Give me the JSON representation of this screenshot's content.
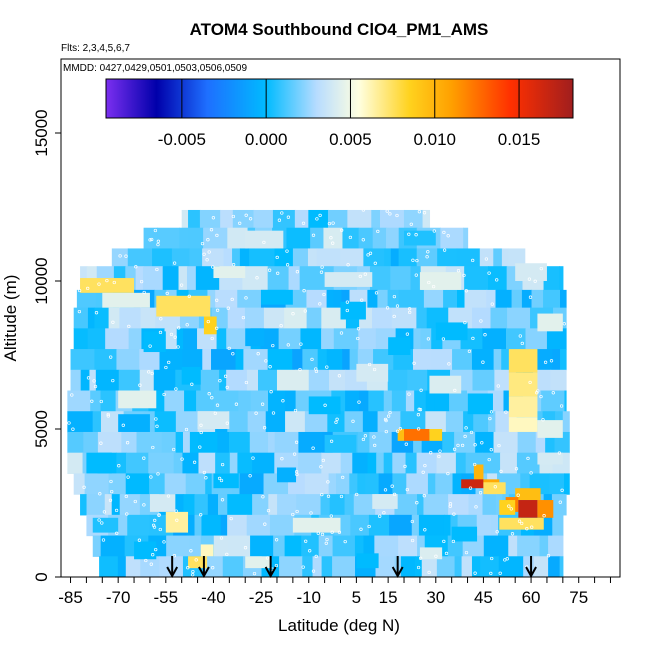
{
  "chart_data": {
    "type": "heatmap",
    "title": "ATOM4 Southbound ClO4_PM1_AMS",
    "flights_note": "Flts: 2,3,4,5,6,7",
    "dates_note": "MMDD: 0427,0429,0501,0503,0506,0509",
    "xlabel": "Latitude (deg N)",
    "ylabel": "Altitude (m)",
    "xlim": [
      -88,
      88
    ],
    "ylim": [
      0,
      17500
    ],
    "x_ticks": [
      -85,
      -70,
      -55,
      -40,
      -25,
      -10,
      5,
      15,
      30,
      45,
      60,
      75
    ],
    "x_tick_labels": [
      "-85",
      "-70",
      "-55",
      "-40",
      "-25",
      "-10",
      "5",
      "15",
      "30",
      "45",
      "60",
      "75"
    ],
    "x_minor_step": 5,
    "y_ticks": [
      0,
      5000,
      10000,
      15000
    ],
    "y_tick_labels": [
      "0",
      "5000",
      "10000",
      "15000"
    ],
    "colorbar": {
      "min": -0.0095,
      "max": 0.0182,
      "ticks": [
        -0.005,
        0.0,
        0.005,
        0.01,
        0.015
      ],
      "tick_labels": [
        "-0.005",
        "0.000",
        "0.005",
        "0.010",
        "0.015"
      ],
      "stops": [
        {
          "v": -0.0095,
          "c": "#7b2ff0"
        },
        {
          "v": -0.0065,
          "c": "#0000aa"
        },
        {
          "v": -0.0035,
          "c": "#1e6fff"
        },
        {
          "v": 0.0,
          "c": "#00bbff"
        },
        {
          "v": 0.003,
          "c": "#b7dcff"
        },
        {
          "v": 0.0055,
          "c": "#ffffe0"
        },
        {
          "v": 0.0085,
          "c": "#ffd21e"
        },
        {
          "v": 0.011,
          "c": "#ffa000"
        },
        {
          "v": 0.0145,
          "c": "#ff3000"
        },
        {
          "v": 0.0182,
          "c": "#a01e1e"
        }
      ]
    },
    "background_value": 0.0015,
    "bands": [
      {
        "alt": [
          11800,
          12400
        ],
        "lat": [
          -50,
          28
        ],
        "v": 0.002
      },
      {
        "alt": [
          11100,
          11800
        ],
        "lat": [
          -62,
          40
        ],
        "v": 0.0022
      },
      {
        "alt": [
          10500,
          11100
        ],
        "lat": [
          -72,
          58
        ],
        "v": 0.0016
      },
      {
        "alt": [
          9700,
          10500
        ],
        "lat": [
          -82,
          70
        ],
        "v": 0.0018
      },
      {
        "alt": [
          9100,
          9700
        ],
        "lat": [
          -83,
          71
        ],
        "v": 0.0012
      },
      {
        "alt": [
          8400,
          9100
        ],
        "lat": [
          -84,
          71
        ],
        "v": 0.002
      },
      {
        "alt": [
          7700,
          8400
        ],
        "lat": [
          -84,
          71
        ],
        "v": 0.0015
      },
      {
        "alt": [
          7000,
          7700
        ],
        "lat": [
          -85,
          71
        ],
        "v": 0.001
      },
      {
        "alt": [
          6300,
          7000
        ],
        "lat": [
          -85,
          71
        ],
        "v": 0.0018
      },
      {
        "alt": [
          5600,
          6300
        ],
        "lat": [
          -86,
          71
        ],
        "v": 0.0012
      },
      {
        "alt": [
          4900,
          5600
        ],
        "lat": [
          -86,
          72
        ],
        "v": 0.0016
      },
      {
        "alt": [
          4200,
          4900
        ],
        "lat": [
          -86,
          72
        ],
        "v": 0.0012
      },
      {
        "alt": [
          3500,
          4200
        ],
        "lat": [
          -86,
          72
        ],
        "v": 0.0018
      },
      {
        "alt": [
          2800,
          3500
        ],
        "lat": [
          -84,
          72
        ],
        "v": 0.0014
      },
      {
        "alt": [
          2100,
          2800
        ],
        "lat": [
          -82,
          71
        ],
        "v": 0.0016
      },
      {
        "alt": [
          1400,
          2100
        ],
        "lat": [
          -80,
          70
        ],
        "v": 0.0012
      },
      {
        "alt": [
          700,
          1400
        ],
        "lat": [
          -78,
          70
        ],
        "v": 0.0017
      },
      {
        "alt": [
          0,
          700
        ],
        "lat": [
          -76,
          70
        ],
        "v": 0.0013
      }
    ],
    "patches": [
      {
        "lat": [
          -82,
          -65
        ],
        "alt": [
          9600,
          10100
        ],
        "v": 0.0075
      },
      {
        "lat": [
          -58,
          -41
        ],
        "alt": [
          8800,
          9500
        ],
        "v": 0.0075
      },
      {
        "lat": [
          -43,
          -39
        ],
        "alt": [
          8200,
          8800
        ],
        "v": 0.0085
      },
      {
        "lat": [
          -75,
          -60
        ],
        "alt": [
          9100,
          9600
        ],
        "v": 0.0045
      },
      {
        "lat": [
          -40,
          -30
        ],
        "alt": [
          10100,
          10500
        ],
        "v": 0.0045
      },
      {
        "lat": [
          -30,
          -18
        ],
        "alt": [
          11100,
          11700
        ],
        "v": 0.004
      },
      {
        "lat": [
          -5,
          10
        ],
        "alt": [
          9800,
          10300
        ],
        "v": 0.004
      },
      {
        "lat": [
          25,
          38
        ],
        "alt": [
          9700,
          10300
        ],
        "v": 0.0045
      },
      {
        "lat": [
          55,
          65
        ],
        "alt": [
          10000,
          10600
        ],
        "v": 0.004
      },
      {
        "lat": [
          62,
          70
        ],
        "alt": [
          8300,
          8900
        ],
        "v": 0.0045
      },
      {
        "lat": [
          -70,
          -58
        ],
        "alt": [
          5700,
          6300
        ],
        "v": 0.0045
      },
      {
        "lat": [
          -20,
          -10
        ],
        "alt": [
          6300,
          7000
        ],
        "v": 0.0042
      },
      {
        "lat": [
          -45,
          -35
        ],
        "alt": [
          5000,
          5600
        ],
        "v": 0.004
      },
      {
        "lat": [
          5,
          15
        ],
        "alt": [
          6600,
          7200
        ],
        "v": 0.004
      },
      {
        "lat": [
          28,
          38
        ],
        "alt": [
          6200,
          6800
        ],
        "v": 0.0042
      },
      {
        "lat": [
          53,
          62
        ],
        "alt": [
          6900,
          7700
        ],
        "v": 0.0075
      },
      {
        "lat": [
          53,
          62
        ],
        "alt": [
          6100,
          6900
        ],
        "v": 0.007
      },
      {
        "lat": [
          53,
          62
        ],
        "alt": [
          5400,
          6100
        ],
        "v": 0.0065
      },
      {
        "lat": [
          53,
          62
        ],
        "alt": [
          4900,
          5400
        ],
        "v": 0.006
      },
      {
        "lat": [
          62,
          70
        ],
        "alt": [
          4700,
          5300
        ],
        "v": 0.0045
      },
      {
        "lat": [
          20,
          28
        ],
        "alt": [
          4600,
          5000
        ],
        "v": 0.0125
      },
      {
        "lat": [
          18,
          20
        ],
        "alt": [
          4600,
          5000
        ],
        "v": 0.0095
      },
      {
        "lat": [
          28,
          32
        ],
        "alt": [
          4600,
          5000
        ],
        "v": 0.0085
      },
      {
        "lat": [
          42,
          45
        ],
        "alt": [
          3200,
          3800
        ],
        "v": 0.01
      },
      {
        "lat": [
          38,
          45
        ],
        "alt": [
          3000,
          3300
        ],
        "v": 0.0165
      },
      {
        "lat": [
          45,
          50
        ],
        "alt": [
          3000,
          3300
        ],
        "v": 0.0105
      },
      {
        "lat": [
          55,
          63
        ],
        "alt": [
          2600,
          3000
        ],
        "v": 0.0095
      },
      {
        "lat": [
          52,
          56
        ],
        "alt": [
          2200,
          2700
        ],
        "v": 0.012
      },
      {
        "lat": [
          56,
          62
        ],
        "alt": [
          2000,
          2600
        ],
        "v": 0.0168
      },
      {
        "lat": [
          62,
          67
        ],
        "alt": [
          2000,
          2600
        ],
        "v": 0.0115
      },
      {
        "lat": [
          50,
          55
        ],
        "alt": [
          2100,
          2600
        ],
        "v": 0.0085
      },
      {
        "lat": [
          50,
          64
        ],
        "alt": [
          1600,
          2000
        ],
        "v": 0.0075
      },
      {
        "lat": [
          45,
          52
        ],
        "alt": [
          2800,
          3200
        ],
        "v": 0.0075
      },
      {
        "lat": [
          -55,
          -48
        ],
        "alt": [
          1500,
          2200
        ],
        "v": 0.0065
      },
      {
        "lat": [
          -48,
          -42
        ],
        "alt": [
          300,
          700
        ],
        "v": 0.0075
      },
      {
        "lat": [
          -44,
          -40
        ],
        "alt": [
          700,
          1100
        ],
        "v": 0.006
      },
      {
        "lat": [
          -60,
          -52
        ],
        "alt": [
          2200,
          2800
        ],
        "v": 0.004
      },
      {
        "lat": [
          -15,
          0
        ],
        "alt": [
          1500,
          2000
        ],
        "v": 0.0045
      },
      {
        "lat": [
          10,
          18
        ],
        "alt": [
          2300,
          2800
        ],
        "v": 0.004
      },
      {
        "lat": [
          -30,
          -22
        ],
        "alt": [
          300,
          700
        ],
        "v": 0.0045
      },
      {
        "lat": [
          25,
          32
        ],
        "alt": [
          600,
          1000
        ],
        "v": 0.0042
      },
      {
        "lat": [
          62,
          70
        ],
        "alt": [
          3800,
          4200
        ],
        "v": 0.004
      },
      {
        "lat": [
          -70,
          -60
        ],
        "alt": [
          4900,
          5500
        ],
        "v": -0.0005
      },
      {
        "lat": [
          -80,
          -72
        ],
        "alt": [
          3500,
          4200
        ],
        "v": 0.0
      },
      {
        "lat": [
          -62,
          -55
        ],
        "alt": [
          7600,
          8300
        ],
        "v": 0.0
      },
      {
        "lat": [
          -30,
          -24
        ],
        "alt": [
          7800,
          8400
        ],
        "v": -0.0005
      },
      {
        "lat": [
          -10,
          0
        ],
        "alt": [
          5500,
          6100
        ],
        "v": 0.0
      },
      {
        "lat": [
          -20,
          -14
        ],
        "alt": [
          3200,
          3700
        ],
        "v": -0.0005
      },
      {
        "lat": [
          0,
          8
        ],
        "alt": [
          8700,
          9300
        ],
        "v": 0.0
      },
      {
        "lat": [
          15,
          22
        ],
        "alt": [
          7500,
          8100
        ],
        "v": 0.0
      },
      {
        "lat": [
          40,
          48
        ],
        "alt": [
          5500,
          6200
        ],
        "v": 0.0
      },
      {
        "lat": [
          30,
          40
        ],
        "alt": [
          8000,
          8600
        ],
        "v": 0.0
      },
      {
        "lat": [
          -40,
          -32
        ],
        "alt": [
          3000,
          3500
        ],
        "v": 0.0
      },
      {
        "lat": [
          -65,
          -58
        ],
        "alt": [
          600,
          1200
        ],
        "v": 0.0
      },
      {
        "lat": [
          5,
          12
        ],
        "alt": [
          300,
          800
        ],
        "v": 0.0
      },
      {
        "lat": [
          -25,
          -15
        ],
        "alt": [
          9200,
          9700
        ],
        "v": 0.0
      },
      {
        "lat": [
          35,
          43
        ],
        "alt": [
          1200,
          1700
        ],
        "v": 0.0
      },
      {
        "lat": [
          -78,
          -70
        ],
        "alt": [
          1500,
          2000
        ],
        "v": 0.0005
      },
      {
        "lat": [
          -5,
          5
        ],
        "alt": [
          4200,
          4800
        ],
        "v": 0.0005
      },
      {
        "lat": [
          -50,
          -44
        ],
        "alt": [
          6500,
          7100
        ],
        "v": 0.0
      },
      {
        "lat": [
          20,
          30
        ],
        "alt": [
          11200,
          11700
        ],
        "v": 0.0005
      }
    ],
    "flight_arrows_lat": [
      -53,
      -43,
      -22,
      18,
      60
    ]
  }
}
